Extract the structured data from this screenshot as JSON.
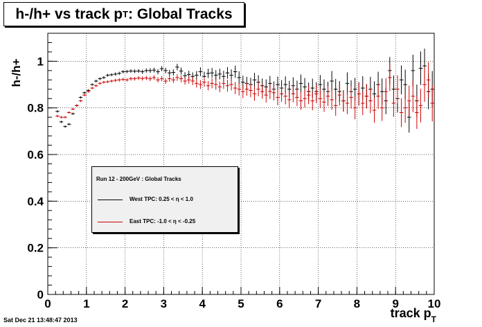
{
  "title_main": "h-/h+ vs track p",
  "title_sub": "T",
  "title_tail": ": Global Tracks",
  "ylabel": "h-/h+",
  "xlabel_main": "track p",
  "xlabel_sub": "T",
  "timestamp": "Sat Dec 21 13:48:47 2013",
  "legend": {
    "header": "Run 12 - 200GeV : Global Tracks",
    "entries": [
      {
        "label": "West TPC: 0.25 <     η < 1.0",
        "color": "#000000"
      },
      {
        "label": "East TPC: -1.0 <     η < -0.25",
        "color": "#cc0000"
      }
    ]
  },
  "chart_data": {
    "type": "scatter",
    "xlim": [
      0,
      10
    ],
    "ylim": [
      0,
      1.12
    ],
    "xticks": [
      "0",
      "1",
      "2",
      "3",
      "4",
      "5",
      "6",
      "7",
      "8",
      "9",
      "10"
    ],
    "yticks": [
      "0",
      "0.2",
      "0.4",
      "0.6",
      "0.8",
      "1"
    ],
    "grid": true,
    "legend_position": "center-left",
    "series": [
      {
        "name": "West TPC: 0.25 < η < 1.0",
        "color": "#000000",
        "points": [
          [
            0.25,
            0.785,
            0.005
          ],
          [
            0.35,
            0.74,
            0.005
          ],
          [
            0.45,
            0.72,
            0.005
          ],
          [
            0.55,
            0.73,
            0.005
          ],
          [
            0.65,
            0.775,
            0.005
          ],
          [
            0.75,
            0.81,
            0.005
          ],
          [
            0.85,
            0.845,
            0.005
          ],
          [
            0.95,
            0.865,
            0.005
          ],
          [
            1.05,
            0.875,
            0.005
          ],
          [
            1.15,
            0.9,
            0.005
          ],
          [
            1.25,
            0.915,
            0.006
          ],
          [
            1.35,
            0.925,
            0.006
          ],
          [
            1.45,
            0.93,
            0.006
          ],
          [
            1.55,
            0.94,
            0.006
          ],
          [
            1.65,
            0.942,
            0.006
          ],
          [
            1.75,
            0.945,
            0.007
          ],
          [
            1.85,
            0.948,
            0.007
          ],
          [
            1.95,
            0.955,
            0.007
          ],
          [
            2.05,
            0.956,
            0.007
          ],
          [
            2.15,
            0.958,
            0.008
          ],
          [
            2.25,
            0.957,
            0.008
          ],
          [
            2.35,
            0.958,
            0.008
          ],
          [
            2.45,
            0.955,
            0.009
          ],
          [
            2.55,
            0.96,
            0.009
          ],
          [
            2.65,
            0.96,
            0.01
          ],
          [
            2.75,
            0.962,
            0.01
          ],
          [
            2.85,
            0.955,
            0.011
          ],
          [
            2.95,
            0.968,
            0.011
          ],
          [
            3.05,
            0.96,
            0.012
          ],
          [
            3.15,
            0.95,
            0.013
          ],
          [
            3.25,
            0.952,
            0.013
          ],
          [
            3.35,
            0.975,
            0.014
          ],
          [
            3.45,
            0.958,
            0.015
          ],
          [
            3.55,
            0.938,
            0.015
          ],
          [
            3.65,
            0.943,
            0.016
          ],
          [
            3.75,
            0.935,
            0.017
          ],
          [
            3.85,
            0.94,
            0.018
          ],
          [
            3.95,
            0.955,
            0.019
          ],
          [
            4.05,
            0.935,
            0.02
          ],
          [
            4.15,
            0.948,
            0.02
          ],
          [
            4.25,
            0.95,
            0.021
          ],
          [
            4.35,
            0.94,
            0.022
          ],
          [
            4.45,
            0.945,
            0.023
          ],
          [
            4.55,
            0.935,
            0.024
          ],
          [
            4.65,
            0.95,
            0.025
          ],
          [
            4.75,
            0.94,
            0.025
          ],
          [
            4.85,
            0.955,
            0.026
          ],
          [
            4.95,
            0.93,
            0.027
          ],
          [
            5.05,
            0.91,
            0.028
          ],
          [
            5.15,
            0.905,
            0.028
          ],
          [
            5.25,
            0.9,
            0.029
          ],
          [
            5.35,
            0.92,
            0.03
          ],
          [
            5.45,
            0.91,
            0.03
          ],
          [
            5.55,
            0.895,
            0.031
          ],
          [
            5.65,
            0.89,
            0.032
          ],
          [
            5.75,
            0.905,
            0.032
          ],
          [
            5.85,
            0.88,
            0.033
          ],
          [
            5.95,
            0.9,
            0.034
          ],
          [
            6.05,
            0.885,
            0.034
          ],
          [
            6.15,
            0.9,
            0.035
          ],
          [
            6.25,
            0.88,
            0.036
          ],
          [
            6.35,
            0.895,
            0.036
          ],
          [
            6.45,
            0.88,
            0.037
          ],
          [
            6.55,
            0.905,
            0.038
          ],
          [
            6.65,
            0.89,
            0.038
          ],
          [
            6.75,
            0.87,
            0.039
          ],
          [
            6.85,
            0.885,
            0.04
          ],
          [
            6.95,
            0.87,
            0.04
          ],
          [
            7.05,
            0.9,
            0.041
          ],
          [
            7.15,
            0.88,
            0.042
          ],
          [
            7.25,
            0.87,
            0.042
          ],
          [
            7.35,
            0.915,
            0.043
          ],
          [
            7.45,
            0.88,
            0.044
          ],
          [
            7.55,
            0.87,
            0.045
          ],
          [
            7.65,
            0.83,
            0.046
          ],
          [
            7.75,
            0.905,
            0.047
          ],
          [
            7.85,
            0.87,
            0.048
          ],
          [
            7.95,
            0.88,
            0.049
          ],
          [
            8.05,
            0.86,
            0.05
          ],
          [
            8.15,
            0.885,
            0.051
          ],
          [
            8.25,
            0.85,
            0.052
          ],
          [
            8.35,
            0.88,
            0.053
          ],
          [
            8.45,
            0.86,
            0.054
          ],
          [
            8.55,
            0.9,
            0.055
          ],
          [
            8.65,
            0.87,
            0.056
          ],
          [
            8.75,
            0.83,
            0.057
          ],
          [
            8.85,
            0.96,
            0.058
          ],
          [
            8.95,
            0.88,
            0.059
          ],
          [
            9.05,
            0.84,
            0.06
          ],
          [
            9.15,
            0.92,
            0.062
          ],
          [
            9.25,
            0.9,
            0.064
          ],
          [
            9.35,
            0.76,
            0.066
          ],
          [
            9.45,
            0.96,
            0.068
          ],
          [
            9.55,
            0.83,
            0.07
          ],
          [
            9.65,
            0.97,
            0.072
          ],
          [
            9.75,
            0.98,
            0.074
          ],
          [
            9.85,
            0.87,
            0.076
          ],
          [
            9.95,
            0.88,
            0.078
          ]
        ]
      },
      {
        "name": "East TPC: -1.0 < η < -0.25",
        "color": "#cc0000",
        "points": [
          [
            0.25,
            0.765,
            0.005
          ],
          [
            0.35,
            0.76,
            0.005
          ],
          [
            0.45,
            0.76,
            0.005
          ],
          [
            0.55,
            0.78,
            0.005
          ],
          [
            0.65,
            0.795,
            0.005
          ],
          [
            0.75,
            0.81,
            0.005
          ],
          [
            0.85,
            0.83,
            0.005
          ],
          [
            0.95,
            0.855,
            0.005
          ],
          [
            1.05,
            0.87,
            0.005
          ],
          [
            1.15,
            0.885,
            0.005
          ],
          [
            1.25,
            0.895,
            0.006
          ],
          [
            1.35,
            0.905,
            0.006
          ],
          [
            1.45,
            0.91,
            0.006
          ],
          [
            1.55,
            0.912,
            0.006
          ],
          [
            1.65,
            0.915,
            0.006
          ],
          [
            1.75,
            0.918,
            0.007
          ],
          [
            1.85,
            0.92,
            0.007
          ],
          [
            1.95,
            0.922,
            0.007
          ],
          [
            2.05,
            0.92,
            0.007
          ],
          [
            2.15,
            0.925,
            0.008
          ],
          [
            2.25,
            0.925,
            0.008
          ],
          [
            2.35,
            0.928,
            0.008
          ],
          [
            2.45,
            0.926,
            0.009
          ],
          [
            2.55,
            0.928,
            0.009
          ],
          [
            2.65,
            0.925,
            0.01
          ],
          [
            2.75,
            0.93,
            0.01
          ],
          [
            2.85,
            0.92,
            0.011
          ],
          [
            2.95,
            0.925,
            0.011
          ],
          [
            3.05,
            0.915,
            0.012
          ],
          [
            3.15,
            0.925,
            0.013
          ],
          [
            3.25,
            0.92,
            0.013
          ],
          [
            3.35,
            0.93,
            0.014
          ],
          [
            3.45,
            0.925,
            0.015
          ],
          [
            3.55,
            0.915,
            0.015
          ],
          [
            3.65,
            0.92,
            0.016
          ],
          [
            3.75,
            0.915,
            0.017
          ],
          [
            3.85,
            0.905,
            0.018
          ],
          [
            3.95,
            0.9,
            0.019
          ],
          [
            4.05,
            0.91,
            0.02
          ],
          [
            4.15,
            0.895,
            0.02
          ],
          [
            4.25,
            0.905,
            0.021
          ],
          [
            4.35,
            0.9,
            0.022
          ],
          [
            4.45,
            0.89,
            0.023
          ],
          [
            4.55,
            0.905,
            0.024
          ],
          [
            4.65,
            0.895,
            0.025
          ],
          [
            4.75,
            0.9,
            0.025
          ],
          [
            4.85,
            0.885,
            0.026
          ],
          [
            4.95,
            0.88,
            0.027
          ],
          [
            5.05,
            0.87,
            0.028
          ],
          [
            5.15,
            0.88,
            0.028
          ],
          [
            5.25,
            0.875,
            0.029
          ],
          [
            5.35,
            0.86,
            0.03
          ],
          [
            5.45,
            0.88,
            0.03
          ],
          [
            5.55,
            0.87,
            0.031
          ],
          [
            5.65,
            0.855,
            0.032
          ],
          [
            5.75,
            0.87,
            0.032
          ],
          [
            5.85,
            0.865,
            0.033
          ],
          [
            5.95,
            0.845,
            0.034
          ],
          [
            6.05,
            0.86,
            0.034
          ],
          [
            6.15,
            0.85,
            0.035
          ],
          [
            6.25,
            0.835,
            0.036
          ],
          [
            6.35,
            0.86,
            0.036
          ],
          [
            6.45,
            0.845,
            0.037
          ],
          [
            6.55,
            0.83,
            0.038
          ],
          [
            6.65,
            0.84,
            0.038
          ],
          [
            6.75,
            0.855,
            0.039
          ],
          [
            6.85,
            0.83,
            0.04
          ],
          [
            6.95,
            0.86,
            0.04
          ],
          [
            7.05,
            0.84,
            0.041
          ],
          [
            7.15,
            0.825,
            0.042
          ],
          [
            7.25,
            0.85,
            0.042
          ],
          [
            7.35,
            0.835,
            0.043
          ],
          [
            7.45,
            0.81,
            0.044
          ],
          [
            7.55,
            0.855,
            0.045
          ],
          [
            7.65,
            0.83,
            0.046
          ],
          [
            7.75,
            0.82,
            0.047
          ],
          [
            7.85,
            0.845,
            0.048
          ],
          [
            7.95,
            0.8,
            0.049
          ],
          [
            8.05,
            0.86,
            0.05
          ],
          [
            8.15,
            0.82,
            0.051
          ],
          [
            8.25,
            0.85,
            0.052
          ],
          [
            8.35,
            0.83,
            0.053
          ],
          [
            8.45,
            0.79,
            0.054
          ],
          [
            8.55,
            0.85,
            0.055
          ],
          [
            8.65,
            0.8,
            0.056
          ],
          [
            8.75,
            0.87,
            0.057
          ],
          [
            8.85,
            0.93,
            0.058
          ],
          [
            8.95,
            0.82,
            0.059
          ],
          [
            9.05,
            0.88,
            0.06
          ],
          [
            9.15,
            0.78,
            0.062
          ],
          [
            9.25,
            0.8,
            0.064
          ],
          [
            9.35,
            0.83,
            0.066
          ],
          [
            9.45,
            0.85,
            0.068
          ],
          [
            9.55,
            0.78,
            0.07
          ],
          [
            9.65,
            0.81,
            0.072
          ],
          [
            9.75,
            0.9,
            0.074
          ],
          [
            9.85,
            0.92,
            0.076
          ],
          [
            9.95,
            0.82,
            0.078
          ]
        ]
      }
    ]
  }
}
